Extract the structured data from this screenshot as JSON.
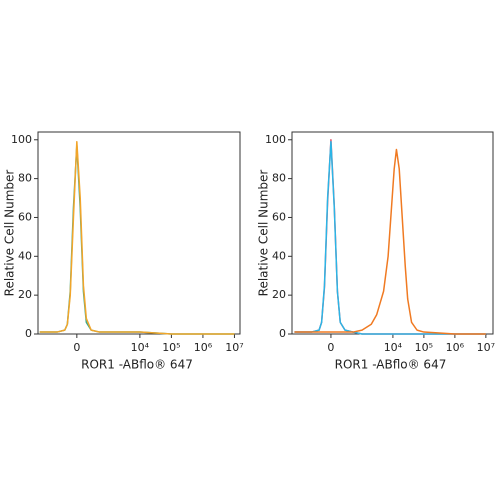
{
  "chart_data": [
    {
      "type": "line",
      "ylabel": "Relative Cell Number",
      "xlabel": "ROR1 -ABflo® 647",
      "xscale": "biexponential",
      "xlim": [
        -1700,
        15000000
      ],
      "ylim": [
        0,
        104
      ],
      "yticks": [
        0,
        20,
        40,
        60,
        80,
        100
      ],
      "xticks": [
        0,
        {
          "value": 10000,
          "label": "10⁴"
        },
        {
          "value": 100000,
          "label": "10⁵"
        },
        {
          "value": 1000000,
          "label": "10⁶"
        },
        {
          "value": 10000000,
          "label": "10⁷"
        }
      ],
      "series": [
        {
          "color": "#3aa98a",
          "x": [
            -1500,
            -400,
            -200,
            -150,
            -100,
            -50,
            0,
            50,
            100,
            150,
            250,
            500,
            1000,
            10000,
            100000,
            1000000,
            10000000
          ],
          "values": [
            1,
            1,
            2,
            5,
            22,
            65,
            97,
            65,
            22,
            6,
            2,
            1,
            1,
            1,
            0,
            0,
            0
          ]
        },
        {
          "color": "#f2a52a",
          "x": [
            -1500,
            -400,
            -200,
            -150,
            -100,
            -50,
            0,
            50,
            100,
            150,
            250,
            500,
            1000,
            10000,
            100000,
            1000000,
            10000000
          ],
          "values": [
            1,
            1,
            2,
            5,
            20,
            60,
            99,
            70,
            25,
            8,
            2,
            1,
            1,
            1,
            0,
            0,
            0
          ]
        }
      ]
    },
    {
      "type": "line",
      "ylabel": "Relative Cell Number",
      "xlabel": "ROR1 -ABflo® 647",
      "xscale": "biexponential",
      "xlim": [
        -1800,
        17000000
      ],
      "ylim": [
        0,
        104
      ],
      "yticks": [
        0,
        20,
        40,
        60,
        80,
        100
      ],
      "xticks": [
        0,
        {
          "value": 10000,
          "label": "10⁴"
        },
        {
          "value": 100000,
          "label": "10⁵"
        },
        {
          "value": 1000000,
          "label": "10⁶"
        },
        {
          "value": 10000000,
          "label": "10⁷"
        }
      ],
      "series": [
        {
          "color": "#e0566a",
          "x": [
            -1500,
            -400,
            -200,
            -150,
            -100,
            -50,
            0,
            50,
            100,
            150,
            250,
            500,
            1000,
            10000,
            100000,
            1000000,
            10000000
          ],
          "values": [
            1,
            1,
            2,
            6,
            24,
            68,
            100,
            66,
            22,
            6,
            2,
            1,
            0,
            0,
            0,
            0,
            0
          ]
        },
        {
          "color": "#2bb5e6",
          "x": [
            -1500,
            -400,
            -200,
            -150,
            -100,
            -50,
            0,
            50,
            100,
            150,
            250,
            500,
            1000,
            10000,
            100000,
            1000000,
            10000000
          ],
          "values": [
            1,
            1,
            2,
            6,
            25,
            70,
            99,
            65,
            22,
            6,
            2,
            1,
            0,
            0,
            0,
            0,
            0
          ]
        },
        {
          "color": "#f07a22",
          "x": [
            -1500,
            -200,
            0,
            500,
            1000,
            2000,
            3000,
            5000,
            7000,
            9000,
            11000,
            13000,
            16000,
            20000,
            25000,
            30000,
            40000,
            60000,
            100000,
            1000000,
            10000000
          ],
          "values": [
            1,
            1,
            1,
            1,
            2,
            5,
            10,
            22,
            40,
            65,
            85,
            95,
            85,
            60,
            35,
            18,
            6,
            2,
            1,
            0,
            0
          ]
        }
      ]
    }
  ]
}
